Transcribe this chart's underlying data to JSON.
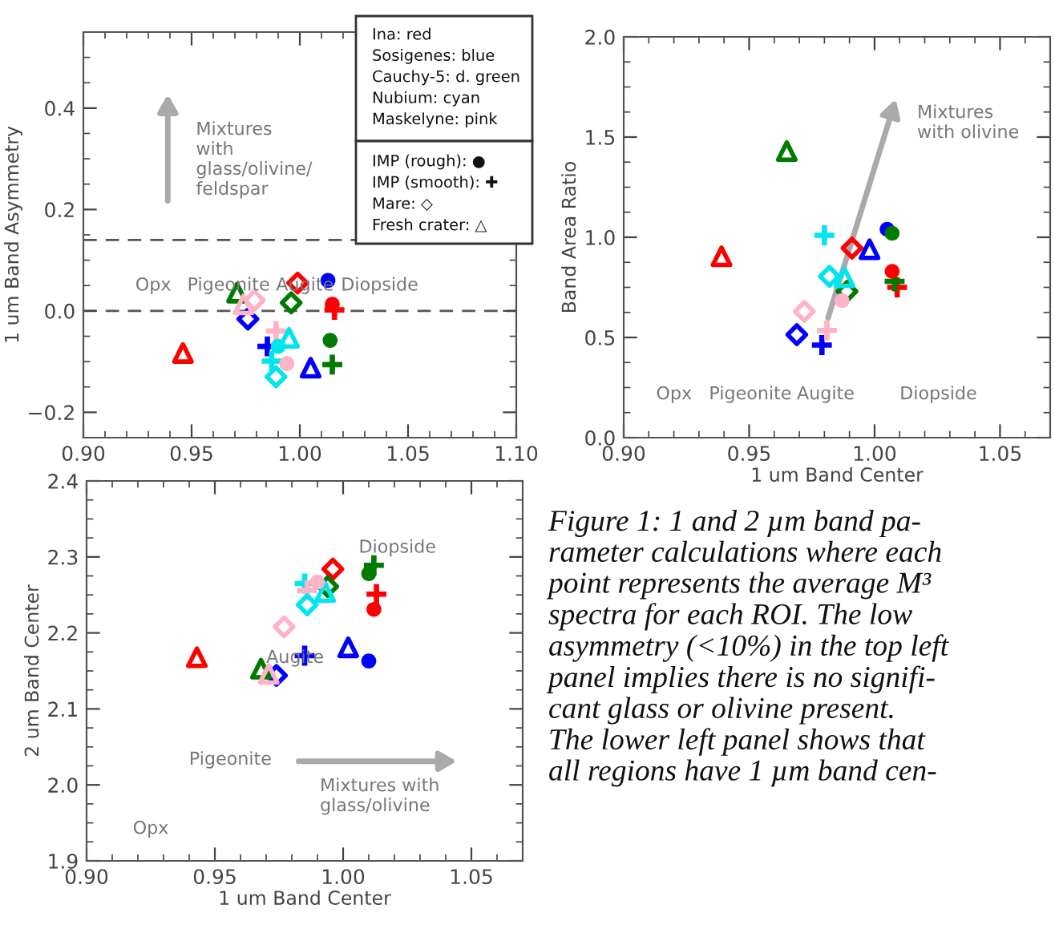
{
  "chart_data": [
    {
      "type": "scatter",
      "ylabel": "1 um Band Asymmetry",
      "xlim": [
        0.9,
        1.1
      ],
      "xticks": [
        {
          "value": 0.9,
          "label": "0.90"
        },
        {
          "value": 0.95,
          "label": "0.95"
        },
        {
          "value": 1.0,
          "label": "1.00"
        },
        {
          "value": 1.05,
          "label": "1.05"
        },
        {
          "value": 1.1,
          "label": "1.10"
        }
      ],
      "ylim": [
        -0.25,
        0.55
      ],
      "yticks": [
        {
          "value": -0.2,
          "label": "−0.2"
        },
        {
          "value": 0.0,
          "label": "0.0"
        },
        {
          "value": 0.2,
          "label": "0.2"
        },
        {
          "value": 0.4,
          "label": "0.4"
        }
      ],
      "series": [
        {
          "marker": "circle",
          "colors": [
            "#ff0000",
            "#0000ff",
            "#007a00",
            "#00e5ee",
            "#ffb3c6"
          ],
          "x": [
            1.015,
            1.013,
            1.014,
            0.99,
            0.994
          ],
          "values": [
            0.013,
            0.06,
            -0.058,
            -0.07,
            -0.104
          ]
        },
        {
          "marker": "cross",
          "colors": [
            "#ff0000",
            "#0000ff",
            "#007a00",
            "#00e5ee",
            "#ffb3c6"
          ],
          "x": [
            1.016,
            0.985,
            1.015,
            0.987,
            0.989
          ],
          "values": [
            0.002,
            -0.07,
            -0.106,
            -0.099,
            -0.04
          ]
        },
        {
          "marker": "diamond",
          "colors": [
            "#ff0000",
            "#0000ff",
            "#007a00",
            "#00e5ee",
            "#ffb3c6"
          ],
          "x": [
            0.999,
            0.976,
            0.996,
            0.989,
            0.979
          ],
          "values": [
            0.055,
            -0.016,
            0.016,
            -0.13,
            0.021
          ]
        },
        {
          "marker": "triangle",
          "colors": [
            "#ff0000",
            "#0000ff",
            "#007a00",
            "#00e5ee",
            "#ffb3c6"
          ],
          "x": [
            0.946,
            1.005,
            0.971,
            0.995,
            0.974
          ],
          "values": [
            -0.083,
            -0.112,
            0.036,
            -0.053,
            0.013
          ]
        }
      ],
      "ref_lines": [
        {
          "axis": "y",
          "value": 0.14,
          "line_style": "dashed",
          "color": "#555555"
        },
        {
          "axis": "y",
          "value": 0.0,
          "line_style": "dashed",
          "color": "#555555"
        }
      ],
      "annotations": [
        "Opx",
        "Pigeonite",
        "Augite",
        "Diopside",
        "Mixtures\nwith\nglass/olivine/\nfeldspar",
        "Ina: red",
        "Sosigenes: blue",
        "Cauchy-5: d. green",
        "Nubium: cyan",
        "Maskelyne: pink",
        "IMP (rough): ●",
        "IMP (smooth): ✚",
        "Mare: ◇",
        "Fresh crater: △"
      ]
    },
    {
      "type": "scatter",
      "xlabel": "1 um Band Center",
      "ylabel": "Band Area Ratio",
      "xlim": [
        0.9,
        1.07
      ],
      "xticks": [
        {
          "value": 0.9,
          "label": "0.90"
        },
        {
          "value": 0.95,
          "label": "0.95"
        },
        {
          "value": 1.0,
          "label": "1.00"
        },
        {
          "value": 1.05,
          "label": "1.05"
        }
      ],
      "ylim": [
        0.0,
        2.0
      ],
      "yticks": [
        {
          "value": 0.0,
          "label": "0.0"
        },
        {
          "value": 0.5,
          "label": "0.5"
        },
        {
          "value": 1.0,
          "label": "1.0"
        },
        {
          "value": 1.5,
          "label": "1.5"
        },
        {
          "value": 2.0,
          "label": "2.0"
        }
      ],
      "series": [
        {
          "marker": "circle",
          "colors": [
            "#ff0000",
            "#0000ff",
            "#007a00",
            "#00e5ee",
            "#ffb3c6"
          ],
          "x": [
            1.007,
            1.005,
            1.007,
            null,
            0.987
          ],
          "values": [
            0.83,
            1.04,
            1.02,
            null,
            0.684
          ]
        },
        {
          "marker": "cross",
          "colors": [
            "#ff0000",
            "#0000ff",
            "#007a00",
            "#00e5ee",
            "#ffb3c6"
          ],
          "x": [
            1.009,
            0.979,
            1.008,
            0.98,
            0.981
          ],
          "values": [
            0.75,
            0.462,
            0.78,
            1.01,
            0.535
          ]
        },
        {
          "marker": "diamond",
          "colors": [
            "#ff0000",
            "#0000ff",
            "#007a00",
            "#00e5ee",
            "#ffb3c6"
          ],
          "x": [
            0.991,
            0.969,
            0.989,
            0.982,
            0.972
          ],
          "values": [
            0.946,
            0.514,
            0.73,
            0.805,
            0.63
          ]
        },
        {
          "marker": "triangle",
          "colors": [
            "#ff0000",
            "#0000ff",
            "#007a00",
            "#00e5ee",
            "#ffb3c6"
          ],
          "x": [
            0.939,
            0.998,
            0.965,
            0.988,
            null
          ],
          "values": [
            0.905,
            0.94,
            1.43,
            0.8,
            null
          ]
        }
      ],
      "annotations": [
        "Opx",
        "Pigeonite",
        "Augite",
        "Diopside",
        "Mixtures\nwith olivine"
      ]
    },
    {
      "type": "scatter",
      "xlabel": "1 um Band Center",
      "ylabel": "2 um Band Center",
      "xlim": [
        0.9,
        1.07
      ],
      "xticks": [
        {
          "value": 0.9,
          "label": "0.90"
        },
        {
          "value": 0.95,
          "label": "0.95"
        },
        {
          "value": 1.0,
          "label": "1.00"
        },
        {
          "value": 1.05,
          "label": "1.05"
        }
      ],
      "ylim": [
        1.9,
        2.4
      ],
      "yticks": [
        {
          "value": 1.9,
          "label": "1.9"
        },
        {
          "value": 2.0,
          "label": "2.0"
        },
        {
          "value": 2.1,
          "label": "2.1"
        },
        {
          "value": 2.2,
          "label": "2.2"
        },
        {
          "value": 2.3,
          "label": "2.3"
        },
        {
          "value": 2.4,
          "label": "2.4"
        }
      ],
      "series": [
        {
          "marker": "circle",
          "colors": [
            "#ff0000",
            "#0000ff",
            "#007a00",
            "#00e5ee",
            "#ffb3c6"
          ],
          "x": [
            1.012,
            1.01,
            1.01,
            null,
            0.99
          ],
          "values": [
            2.231,
            2.163,
            2.278,
            null,
            2.267
          ]
        },
        {
          "marker": "cross",
          "colors": [
            "#ff0000",
            "#0000ff",
            "#007a00",
            "#00e5ee",
            "#ffb3c6"
          ],
          "x": [
            1.013,
            0.985,
            1.012,
            0.985,
            0.986
          ],
          "values": [
            2.251,
            2.17,
            2.289,
            2.265,
            2.256
          ]
        },
        {
          "marker": "diamond",
          "colors": [
            "#ff0000",
            "#0000ff",
            "#007a00",
            "#00e5ee",
            "#ffb3c6"
          ],
          "x": [
            0.996,
            0.974,
            0.994,
            0.986,
            0.977
          ],
          "values": [
            2.284,
            2.144,
            2.261,
            2.237,
            2.208
          ]
        },
        {
          "marker": "triangle",
          "colors": [
            "#ff0000",
            "#0000ff",
            "#007a00",
            "#00e5ee",
            "#ffb3c6"
          ],
          "x": [
            0.943,
            1.002,
            0.968,
            0.993,
            0.971
          ],
          "values": [
            2.168,
            2.181,
            2.153,
            2.254,
            2.146
          ]
        }
      ],
      "annotations": [
        "Diopside",
        "Augite",
        "Pigeonite",
        "Opx",
        "Mixtures with\nglass/olivine",
        "Figure 1: 1 and 2 µm band pa-\nrameter calculations where each\npoint represents the average M³\nspectra for each ROI. The low\nasymmetry (<10%) in the top left\npanel implies there is no signifi-\ncant glass or olivine present.\nThe lower left panel shows that\nall regions have 1 µm band cen-"
      ]
    }
  ]
}
